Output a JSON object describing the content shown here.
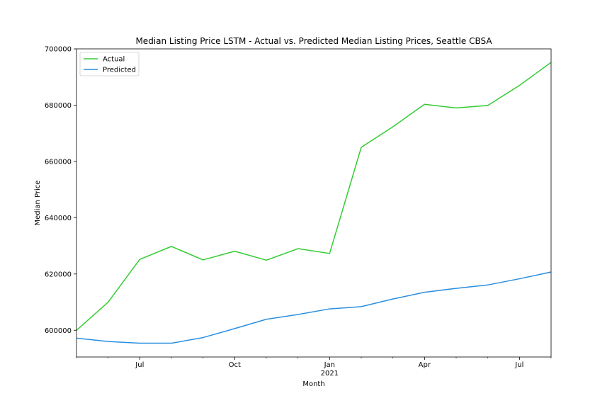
{
  "chart_data": {
    "type": "line",
    "title": "Median Listing Price LSTM - Actual vs. Predicted Median Listing Prices, Seattle CBSA",
    "xlabel": "Month",
    "ylabel": "Median Price",
    "x": [
      "2020-05",
      "2020-06",
      "2020-07",
      "2020-08",
      "2020-09",
      "2020-10",
      "2020-11",
      "2020-12",
      "2021-01",
      "2021-02",
      "2021-03",
      "2021-04",
      "2021-05",
      "2021-06",
      "2021-07",
      "2021-08"
    ],
    "xlim": [
      "2020-05",
      "2021-08"
    ],
    "ylim": [
      590500,
      700000
    ],
    "y_ticks": [
      "600000",
      "620000",
      "640000",
      "660000",
      "680000",
      "700000"
    ],
    "x_ticks": [
      {
        "x": "2020-07",
        "label": "Jul",
        "sublabel": ""
      },
      {
        "x": "2020-10",
        "label": "Oct",
        "sublabel": ""
      },
      {
        "x": "2021-01",
        "label": "Jan",
        "sublabel": "2021"
      },
      {
        "x": "2021-04",
        "label": "Apr",
        "sublabel": ""
      },
      {
        "x": "2021-07",
        "label": "Jul",
        "sublabel": ""
      }
    ],
    "series": [
      {
        "name": "Actual",
        "color": "#33cc33",
        "values": [
          600000,
          610000,
          625200,
          629800,
          625000,
          628100,
          624900,
          629000,
          627300,
          665000,
          672300,
          680300,
          679000,
          679900,
          687000,
          695200
        ]
      },
      {
        "name": "Predicted",
        "color": "#2a8fe0",
        "values": [
          597200,
          596000,
          595400,
          595400,
          597400,
          600600,
          603900,
          605600,
          607600,
          608400,
          611100,
          613500,
          614900,
          616100,
          618300,
          620700
        ]
      }
    ],
    "legend": "top-left",
    "grid": false
  }
}
